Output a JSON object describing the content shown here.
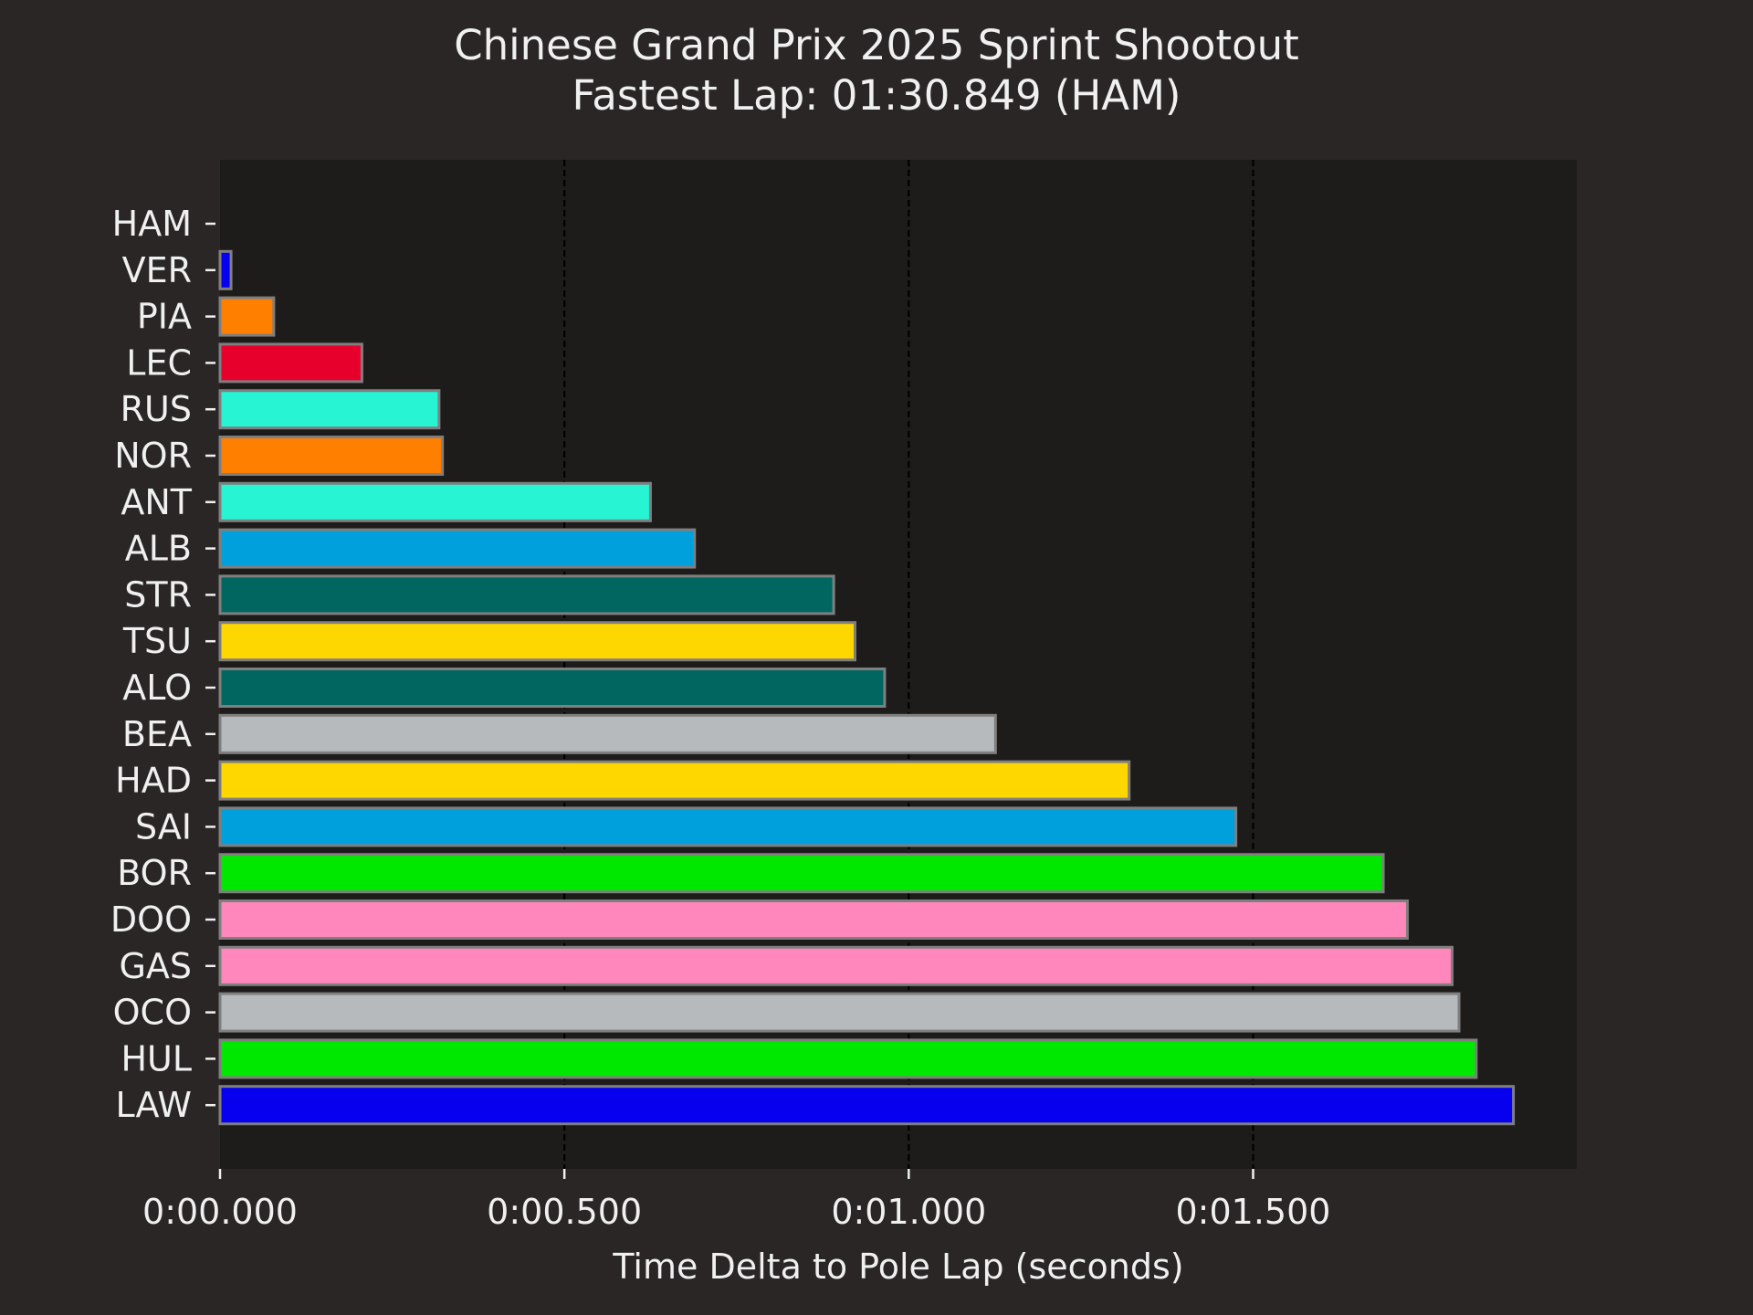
{
  "chart_data": {
    "type": "bar",
    "orientation": "horizontal",
    "title": "Chinese Grand Prix 2025 Sprint Shootout",
    "subtitle": "Fastest Lap: 01:30.849 (HAM)",
    "xlabel": "Time Delta to Pole Lap (seconds)",
    "ylabel": "",
    "xlim": [
      0,
      1.97
    ],
    "xticks": [
      {
        "value": 0,
        "label": "0:00.000"
      },
      {
        "value": 0.5,
        "label": "0:00.500"
      },
      {
        "value": 1.0,
        "label": "0:01.000"
      },
      {
        "value": 1.5,
        "label": "0:01.500"
      }
    ],
    "grid": "vertical-dashed",
    "categories": [
      "HAM",
      "VER",
      "PIA",
      "LEC",
      "RUS",
      "NOR",
      "ANT",
      "ALB",
      "STR",
      "TSU",
      "ALO",
      "BEA",
      "HAD",
      "SAI",
      "BOR",
      "DOO",
      "GAS",
      "OCO",
      "HUL",
      "LAW"
    ],
    "values": [
      0.0,
      0.016,
      0.078,
      0.206,
      0.318,
      0.323,
      0.625,
      0.689,
      0.891,
      0.922,
      0.965,
      1.126,
      1.32,
      1.475,
      1.689,
      1.724,
      1.789,
      1.799,
      1.824,
      1.878
    ],
    "colors": [
      "#27f4d2",
      "#0600ef",
      "#ff8000",
      "#e8002d",
      "#27f4d2",
      "#ff8000",
      "#27f4d2",
      "#00a0dd",
      "#00665f",
      "#fed700",
      "#00665f",
      "#b6babd",
      "#fed700",
      "#00a0dd",
      "#00e700",
      "#ff87bc",
      "#ff87bc",
      "#b6babd",
      "#00e700",
      "#0600ef"
    ]
  }
}
